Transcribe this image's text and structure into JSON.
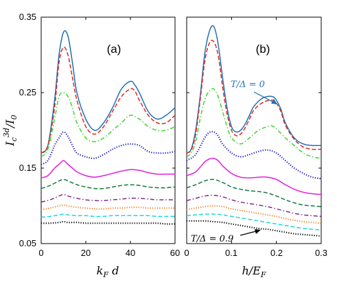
{
  "chart_data": [
    {
      "type": "line",
      "panel_label": "(a)",
      "xlabel": "k_F d",
      "ylabel": "I_c^{3d}/I_0",
      "xlim": [
        0,
        60
      ],
      "ylim": [
        0.05,
        0.35
      ],
      "xticks": [
        "0",
        "20",
        "40",
        "60"
      ],
      "yticks": [
        "0.05",
        "0.15",
        "0.25",
        "0.35"
      ],
      "series": [
        {
          "color": "#1f6fb5",
          "style": "solid",
          "x": [
            0,
            3,
            6,
            8,
            10,
            12,
            14,
            16,
            20,
            24,
            28,
            32,
            36,
            40,
            42,
            44,
            48,
            52,
            56,
            60
          ],
          "y": [
            0.17,
            0.18,
            0.24,
            0.3,
            0.33,
            0.325,
            0.29,
            0.25,
            0.215,
            0.2,
            0.21,
            0.23,
            0.255,
            0.265,
            0.26,
            0.25,
            0.225,
            0.215,
            0.22,
            0.23
          ]
        },
        {
          "color": "#e0261d",
          "style": "dashed",
          "x": [
            0,
            3,
            6,
            8,
            10,
            12,
            14,
            16,
            20,
            24,
            28,
            32,
            36,
            40,
            42,
            44,
            48,
            52,
            56,
            60
          ],
          "y": [
            0.17,
            0.18,
            0.23,
            0.29,
            0.31,
            0.3,
            0.27,
            0.24,
            0.205,
            0.195,
            0.205,
            0.225,
            0.245,
            0.255,
            0.252,
            0.24,
            0.22,
            0.21,
            0.21,
            0.22
          ]
        },
        {
          "color": "#39d62a",
          "style": "dashdot",
          "x": [
            0,
            3,
            6,
            8,
            10,
            12,
            14,
            16,
            20,
            24,
            28,
            32,
            36,
            40,
            44,
            48,
            52,
            56,
            60
          ],
          "y": [
            0.165,
            0.175,
            0.215,
            0.245,
            0.25,
            0.245,
            0.23,
            0.21,
            0.19,
            0.185,
            0.19,
            0.2,
            0.21,
            0.22,
            0.215,
            0.205,
            0.2,
            0.2,
            0.205
          ]
        },
        {
          "color": "#1212c8",
          "style": "dotted",
          "x": [
            0,
            3,
            6,
            8,
            10,
            12,
            14,
            16,
            20,
            24,
            28,
            32,
            36,
            40,
            44,
            48,
            52,
            56,
            60
          ],
          "y": [
            0.155,
            0.16,
            0.18,
            0.19,
            0.198,
            0.192,
            0.18,
            0.17,
            0.165,
            0.163,
            0.168,
            0.175,
            0.18,
            0.182,
            0.18,
            0.172,
            0.17,
            0.17,
            0.172
          ]
        },
        {
          "color": "#e01ee0",
          "style": "solid",
          "x": [
            0,
            3,
            6,
            8,
            10,
            12,
            14,
            16,
            20,
            24,
            28,
            32,
            36,
            40,
            44,
            48,
            52,
            56,
            60
          ],
          "y": [
            0.137,
            0.14,
            0.15,
            0.155,
            0.16,
            0.155,
            0.15,
            0.145,
            0.14,
            0.138,
            0.14,
            0.143,
            0.146,
            0.148,
            0.147,
            0.144,
            0.142,
            0.142,
            0.142
          ]
        },
        {
          "color": "#127a3a",
          "style": "dashed",
          "x": [
            0,
            4,
            8,
            10,
            12,
            16,
            20,
            24,
            28,
            32,
            36,
            40,
            44,
            48,
            52,
            56,
            60
          ],
          "y": [
            0.123,
            0.127,
            0.133,
            0.135,
            0.133,
            0.128,
            0.125,
            0.123,
            0.123,
            0.125,
            0.127,
            0.128,
            0.127,
            0.125,
            0.124,
            0.124,
            0.125
          ]
        },
        {
          "color": "#7f2a8c",
          "style": "dashdot",
          "x": [
            0,
            4,
            8,
            10,
            12,
            16,
            20,
            24,
            28,
            32,
            36,
            40,
            44,
            48,
            52,
            56,
            60
          ],
          "y": [
            0.105,
            0.108,
            0.113,
            0.115,
            0.113,
            0.11,
            0.108,
            0.107,
            0.107,
            0.108,
            0.109,
            0.11,
            0.11,
            0.109,
            0.108,
            0.108,
            0.108
          ]
        },
        {
          "color": "#ff7f1f",
          "style": "dotted",
          "x": [
            0,
            4,
            8,
            10,
            12,
            16,
            20,
            24,
            28,
            32,
            36,
            40,
            44,
            48,
            52,
            56,
            60
          ],
          "y": [
            0.095,
            0.097,
            0.1,
            0.101,
            0.1,
            0.098,
            0.097,
            0.096,
            0.096,
            0.097,
            0.097,
            0.098,
            0.098,
            0.097,
            0.097,
            0.097,
            0.097
          ]
        },
        {
          "color": "#1fd6d6",
          "style": "dashed",
          "x": [
            0,
            4,
            8,
            10,
            12,
            16,
            20,
            24,
            28,
            32,
            36,
            40,
            44,
            48,
            52,
            56,
            60
          ],
          "y": [
            0.085,
            0.086,
            0.088,
            0.089,
            0.088,
            0.087,
            0.087,
            0.086,
            0.086,
            0.087,
            0.087,
            0.087,
            0.087,
            0.087,
            0.086,
            0.086,
            0.086
          ]
        },
        {
          "color": "#000000",
          "style": "dotted",
          "x": [
            0,
            4,
            8,
            10,
            12,
            16,
            20,
            24,
            28,
            32,
            36,
            40,
            44,
            48,
            52,
            56,
            60
          ],
          "y": [
            0.077,
            0.077,
            0.078,
            0.079,
            0.078,
            0.078,
            0.077,
            0.077,
            0.077,
            0.077,
            0.077,
            0.077,
            0.077,
            0.077,
            0.077,
            0.076,
            0.076
          ]
        }
      ]
    },
    {
      "type": "line",
      "panel_label": "(b)",
      "xlabel": "h/E_F",
      "xlim": [
        0,
        0.3
      ],
      "ylim": [
        0.05,
        0.35
      ],
      "xticks": [
        "0",
        "0.1",
        "0.2",
        "0.3"
      ],
      "annotations": [
        {
          "text": "T/Δ = 0",
          "color": "#1f6fb5",
          "arrow_to": [
            0.21,
            0.24
          ]
        },
        {
          "text": "T/Δ = 0.9",
          "color": "#000000",
          "arrow_to": [
            0.2,
            0.067
          ]
        }
      ],
      "series": [
        {
          "color": "#1f6fb5",
          "style": "solid",
          "x": [
            0,
            0.01,
            0.02,
            0.03,
            0.04,
            0.05,
            0.06,
            0.07,
            0.08,
            0.09,
            0.1,
            0.11,
            0.12,
            0.13,
            0.14,
            0.15,
            0.17,
            0.19,
            0.2,
            0.21,
            0.22,
            0.24,
            0.26,
            0.28,
            0.3
          ],
          "y": [
            0.17,
            0.175,
            0.2,
            0.245,
            0.3,
            0.33,
            0.338,
            0.315,
            0.27,
            0.23,
            0.205,
            0.198,
            0.2,
            0.208,
            0.22,
            0.232,
            0.243,
            0.245,
            0.24,
            0.228,
            0.21,
            0.19,
            0.182,
            0.18,
            0.18
          ]
        },
        {
          "color": "#e0261d",
          "style": "dashed",
          "x": [
            0,
            0.01,
            0.02,
            0.03,
            0.04,
            0.05,
            0.06,
            0.07,
            0.08,
            0.09,
            0.1,
            0.11,
            0.12,
            0.13,
            0.14,
            0.15,
            0.17,
            0.19,
            0.2,
            0.21,
            0.22,
            0.24,
            0.26,
            0.28,
            0.3
          ],
          "y": [
            0.17,
            0.174,
            0.195,
            0.24,
            0.29,
            0.315,
            0.318,
            0.3,
            0.258,
            0.222,
            0.2,
            0.193,
            0.195,
            0.203,
            0.215,
            0.227,
            0.237,
            0.24,
            0.236,
            0.225,
            0.207,
            0.188,
            0.178,
            0.175,
            0.175
          ]
        },
        {
          "color": "#39d62a",
          "style": "dashdot",
          "x": [
            0,
            0.01,
            0.02,
            0.03,
            0.04,
            0.05,
            0.06,
            0.07,
            0.08,
            0.09,
            0.1,
            0.12,
            0.14,
            0.16,
            0.18,
            0.19,
            0.2,
            0.22,
            0.24,
            0.26,
            0.28,
            0.3
          ],
          "y": [
            0.165,
            0.17,
            0.185,
            0.215,
            0.24,
            0.252,
            0.255,
            0.245,
            0.225,
            0.205,
            0.19,
            0.182,
            0.19,
            0.2,
            0.205,
            0.206,
            0.202,
            0.19,
            0.18,
            0.17,
            0.165,
            0.163
          ]
        },
        {
          "color": "#1212c8",
          "style": "dotted",
          "x": [
            0,
            0.02,
            0.04,
            0.05,
            0.06,
            0.07,
            0.08,
            0.1,
            0.12,
            0.14,
            0.16,
            0.18,
            0.2,
            0.22,
            0.24,
            0.26,
            0.28,
            0.3
          ],
          "y": [
            0.16,
            0.168,
            0.19,
            0.197,
            0.198,
            0.193,
            0.182,
            0.17,
            0.165,
            0.168,
            0.172,
            0.174,
            0.17,
            0.16,
            0.15,
            0.143,
            0.138,
            0.136
          ]
        },
        {
          "color": "#e01ee0",
          "style": "solid",
          "x": [
            0,
            0.02,
            0.04,
            0.05,
            0.06,
            0.07,
            0.08,
            0.1,
            0.12,
            0.14,
            0.16,
            0.18,
            0.2,
            0.22,
            0.24,
            0.26,
            0.28,
            0.3
          ],
          "y": [
            0.14,
            0.145,
            0.158,
            0.162,
            0.163,
            0.16,
            0.153,
            0.143,
            0.138,
            0.137,
            0.138,
            0.138,
            0.135,
            0.128,
            0.122,
            0.118,
            0.116,
            0.115
          ]
        },
        {
          "color": "#127a3a",
          "style": "dashed",
          "x": [
            0,
            0.02,
            0.04,
            0.06,
            0.08,
            0.1,
            0.12,
            0.14,
            0.16,
            0.18,
            0.2,
            0.22,
            0.24,
            0.26,
            0.28,
            0.3
          ],
          "y": [
            0.124,
            0.128,
            0.133,
            0.135,
            0.131,
            0.125,
            0.122,
            0.12,
            0.119,
            0.117,
            0.113,
            0.108,
            0.104,
            0.101,
            0.1,
            0.099
          ]
        },
        {
          "color": "#7f2a8c",
          "style": "dashdot",
          "x": [
            0,
            0.02,
            0.04,
            0.06,
            0.08,
            0.1,
            0.12,
            0.14,
            0.16,
            0.18,
            0.2,
            0.22,
            0.24,
            0.26,
            0.28,
            0.3
          ],
          "y": [
            0.107,
            0.11,
            0.113,
            0.114,
            0.112,
            0.108,
            0.105,
            0.103,
            0.101,
            0.099,
            0.096,
            0.093,
            0.09,
            0.088,
            0.087,
            0.086
          ]
        },
        {
          "color": "#ff7f1f",
          "style": "dotted",
          "x": [
            0,
            0.02,
            0.04,
            0.06,
            0.08,
            0.1,
            0.12,
            0.14,
            0.16,
            0.18,
            0.2,
            0.22,
            0.24,
            0.26,
            0.28,
            0.3
          ],
          "y": [
            0.095,
            0.097,
            0.099,
            0.1,
            0.099,
            0.096,
            0.094,
            0.092,
            0.09,
            0.088,
            0.086,
            0.083,
            0.081,
            0.079,
            0.078,
            0.077
          ]
        },
        {
          "color": "#1fd6d6",
          "style": "dashed",
          "x": [
            0,
            0.02,
            0.04,
            0.06,
            0.08,
            0.1,
            0.12,
            0.14,
            0.16,
            0.18,
            0.2,
            0.22,
            0.24,
            0.26,
            0.28,
            0.3
          ],
          "y": [
            0.087,
            0.088,
            0.089,
            0.089,
            0.088,
            0.086,
            0.084,
            0.082,
            0.08,
            0.078,
            0.076,
            0.074,
            0.072,
            0.07,
            0.069,
            0.068
          ]
        },
        {
          "color": "#000000",
          "style": "dotted",
          "x": [
            0,
            0.02,
            0.04,
            0.06,
            0.08,
            0.1,
            0.12,
            0.14,
            0.16,
            0.18,
            0.2,
            0.22,
            0.24,
            0.26,
            0.28,
            0.3
          ],
          "y": [
            0.08,
            0.08,
            0.08,
            0.079,
            0.078,
            0.076,
            0.074,
            0.072,
            0.07,
            0.069,
            0.067,
            0.065,
            0.063,
            0.062,
            0.061,
            0.06
          ]
        }
      ]
    }
  ]
}
